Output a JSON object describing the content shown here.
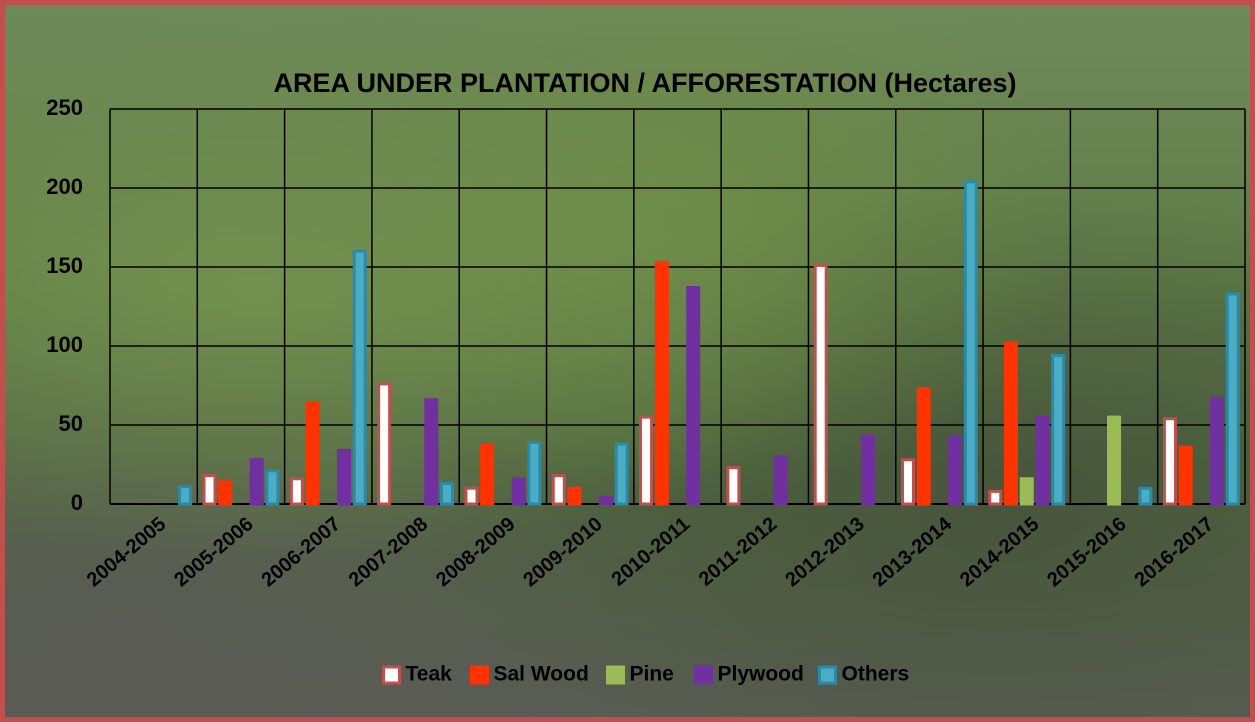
{
  "chart_data": {
    "type": "bar",
    "title": "AREA UNDER PLANTATION / AFFORESTATION  (Hectares)",
    "categories": [
      "2004-2005",
      "2005-2006",
      "2006-2007",
      "2007-2008",
      "2008-2009",
      "2009-2010",
      "2010-2011",
      "2011-2012",
      "2012-2013",
      "2013-2014",
      "2014-2015",
      "2015-2016",
      "2016-2017"
    ],
    "series": [
      {
        "name": "Teak",
        "color": "#ffffff",
        "stroke": "#c0504d",
        "values": [
          0,
          18,
          16,
          76,
          10,
          18,
          55,
          23,
          151,
          28,
          8,
          0,
          54
        ]
      },
      {
        "name": "Sal Wood",
        "color": "#ff3300",
        "stroke": "#ff3300",
        "values": [
          0,
          14,
          64,
          0,
          37,
          10,
          153,
          0,
          0,
          73,
          102,
          0,
          36
        ]
      },
      {
        "name": "Pine",
        "color": "#9bbb59",
        "stroke": "#9bbb59",
        "values": [
          0,
          0,
          0,
          0,
          0,
          0,
          0,
          0,
          0,
          0,
          16,
          55,
          0
        ]
      },
      {
        "name": "Plywood",
        "color": "#7030a0",
        "stroke": "#7030a0",
        "values": [
          0,
          28,
          34,
          66,
          16,
          4,
          137,
          30,
          43,
          42,
          55,
          0,
          67
        ]
      },
      {
        "name": "Others",
        "color": "#4bacc6",
        "stroke": "#2c8aa6",
        "values": [
          11,
          21,
          160,
          13,
          39,
          38,
          0,
          0,
          0,
          204,
          94,
          10,
          133
        ]
      }
    ],
    "ylim": [
      0,
      250
    ],
    "yticks": [
      0,
      50,
      100,
      150,
      200,
      250
    ],
    "grid": true,
    "legend": "bottom"
  }
}
